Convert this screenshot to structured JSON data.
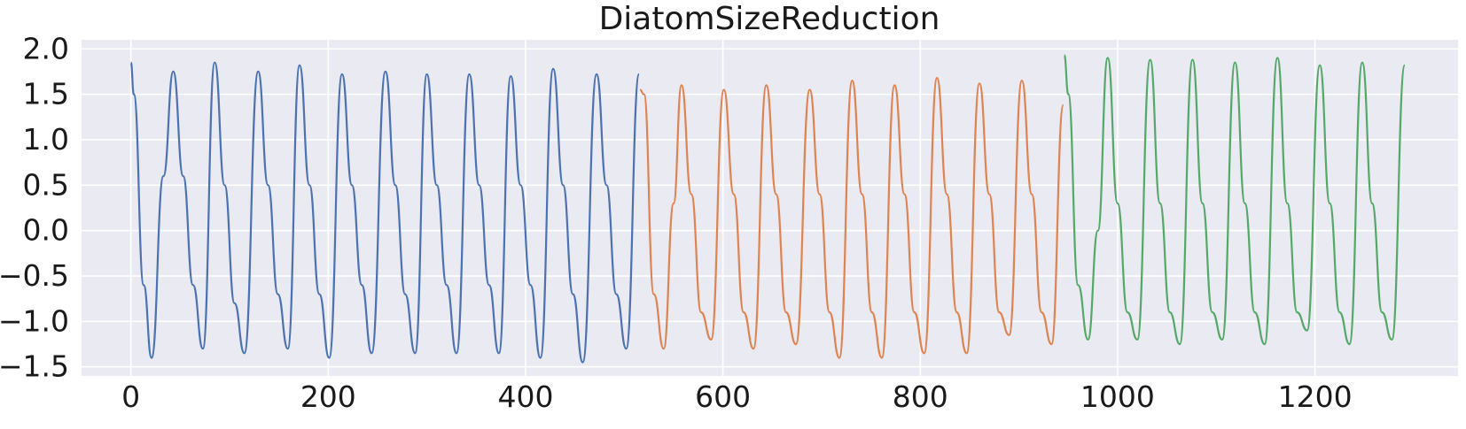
{
  "chart_data": {
    "type": "line",
    "title": "DiatomSizeReduction",
    "xlabel": "",
    "ylabel": "",
    "xlim": [
      -50,
      1345
    ],
    "ylim": [
      -1.6,
      2.1
    ],
    "xticks": [
      0,
      200,
      400,
      600,
      800,
      1000,
      1200
    ],
    "xtick_labels": [
      "0",
      "200",
      "400",
      "600",
      "800",
      "1000",
      "1200"
    ],
    "yticks": [
      -1.5,
      -1.0,
      -0.5,
      0.0,
      0.5,
      1.0,
      1.5,
      2.0
    ],
    "ytick_labels": [
      "−1.5",
      "−1.0",
      "−0.5",
      "0.0",
      "0.5",
      "1.0",
      "1.5",
      "2.0"
    ],
    "grid": true,
    "legend": "none",
    "background_color": "#eaeaf2",
    "series": [
      {
        "color": "#4c72b0",
        "x": [
          0,
          3,
          13,
          21,
          33,
          43,
          53,
          63,
          73,
          85,
          95,
          105,
          115,
          129,
          139,
          149,
          159,
          171,
          181,
          191,
          201,
          214,
          224,
          234,
          244,
          258,
          268,
          278,
          288,
          300,
          310,
          320,
          330,
          343,
          353,
          363,
          373,
          385,
          395,
          405,
          415,
          428,
          438,
          448,
          458,
          472,
          482,
          492,
          502,
          515
        ],
        "y": [
          1.85,
          1.5,
          -0.6,
          -1.4,
          0.6,
          1.75,
          0.6,
          -0.6,
          -1.3,
          1.85,
          0.5,
          -0.8,
          -1.35,
          1.75,
          0.5,
          -0.7,
          -1.3,
          1.82,
          0.5,
          -0.7,
          -1.4,
          1.72,
          0.5,
          -0.6,
          -1.35,
          1.75,
          0.5,
          -0.7,
          -1.35,
          1.72,
          0.5,
          -0.6,
          -1.35,
          1.72,
          0.5,
          -0.6,
          -1.35,
          1.7,
          0.5,
          -0.6,
          -1.4,
          1.78,
          0.5,
          -0.7,
          -1.45,
          1.72,
          0.5,
          -0.7,
          -1.3,
          1.72
        ]
      },
      {
        "color": "#dd8452",
        "x": [
          516,
          520,
          530,
          540,
          550,
          558,
          568,
          578,
          588,
          601,
          611,
          621,
          631,
          644,
          654,
          664,
          674,
          688,
          698,
          708,
          718,
          731,
          741,
          751,
          761,
          774,
          784,
          794,
          804,
          817,
          827,
          837,
          847,
          860,
          870,
          880,
          890,
          903,
          913,
          923,
          933,
          945
        ],
        "y": [
          1.55,
          1.5,
          -0.7,
          -1.3,
          0.3,
          1.6,
          0.4,
          -0.9,
          -1.2,
          1.55,
          0.4,
          -0.9,
          -1.3,
          1.6,
          0.4,
          -0.9,
          -1.25,
          1.55,
          0.4,
          -0.9,
          -1.4,
          1.65,
          0.4,
          -0.9,
          -1.4,
          1.6,
          0.4,
          -0.9,
          -1.35,
          1.68,
          0.4,
          -0.9,
          -1.35,
          1.62,
          0.4,
          -0.9,
          -1.15,
          1.65,
          0.4,
          -0.9,
          -1.25,
          1.38
        ]
      },
      {
        "color": "#55a868",
        "x": [
          946,
          950,
          960,
          970,
          980,
          990,
          1000,
          1010,
          1020,
          1033,
          1043,
          1053,
          1063,
          1076,
          1086,
          1096,
          1106,
          1119,
          1129,
          1139,
          1149,
          1162,
          1172,
          1182,
          1192,
          1205,
          1215,
          1225,
          1235,
          1248,
          1258,
          1268,
          1278,
          1291
        ],
        "y": [
          1.93,
          1.5,
          -0.6,
          -1.2,
          0.0,
          1.9,
          0.3,
          -0.9,
          -1.2,
          1.88,
          0.3,
          -0.9,
          -1.25,
          1.88,
          0.3,
          -0.9,
          -1.2,
          1.85,
          0.3,
          -0.9,
          -1.25,
          1.9,
          0.3,
          -0.9,
          -1.1,
          1.82,
          0.3,
          -0.9,
          -1.25,
          1.85,
          0.3,
          -0.9,
          -1.2,
          1.82
        ]
      }
    ]
  }
}
